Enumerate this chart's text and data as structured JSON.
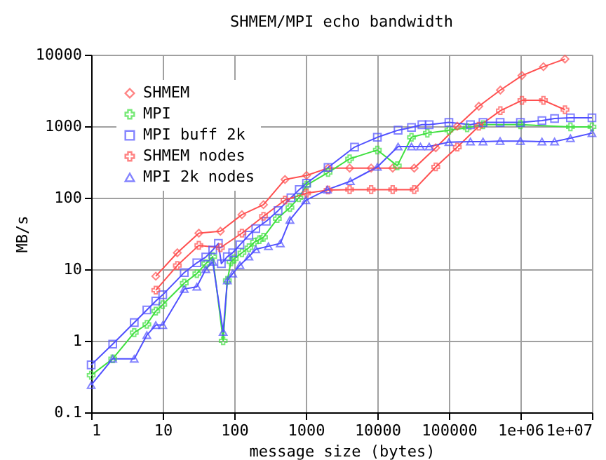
{
  "chart_data": {
    "type": "line",
    "title": "SHMEM/MPI echo bandwidth",
    "xlabel": "message size (bytes)",
    "ylabel": "MB/s",
    "log": "xy",
    "grid": true,
    "legend": "top left",
    "xlim": [
      1,
      10000000
    ],
    "ylim": [
      0.1,
      10000
    ],
    "xticks": [
      1,
      10,
      100,
      1000,
      10000,
      100000,
      {
        "value": 1000000,
        "label": "1e+06"
      },
      {
        "value": 10000000,
        "label": "1e+07"
      }
    ],
    "yticks": [
      0.1,
      1,
      10,
      100,
      1000,
      10000
    ],
    "series": [
      {
        "name": "SHMEM",
        "color": "#ff5050",
        "marker": "diamond",
        "x": [
          8,
          16,
          32,
          64,
          128,
          256,
          512,
          1024,
          2048,
          4096,
          8192,
          16384,
          32768,
          65536,
          131072,
          262144,
          524288,
          1048576,
          2097152,
          4194304
        ],
        "values": [
          8,
          17,
          32,
          34,
          58,
          80,
          180,
          205,
          260,
          260,
          260,
          260,
          260,
          500,
          1000,
          1900,
          3200,
          5100,
          6800,
          8700
        ]
      },
      {
        "name": "MPI",
        "color": "#40e040",
        "marker": "cross",
        "x": [
          1,
          2,
          4,
          6,
          8,
          10,
          20,
          30,
          40,
          50,
          70,
          80,
          90,
          100,
          128,
          160,
          192,
          224,
          256,
          400,
          600,
          800,
          1024,
          2048,
          4096,
          10000,
          19000,
          30000,
          50000,
          100000,
          180000,
          300000,
          1000000,
          5000000,
          10000000
        ],
        "values": [
          0.33,
          0.56,
          1.3,
          1.7,
          2.6,
          3.2,
          6.4,
          8.7,
          12,
          15,
          1.0,
          7,
          12.7,
          14,
          17,
          20,
          24,
          26,
          28,
          51,
          73,
          100,
          150,
          225,
          350,
          465,
          280,
          700,
          800,
          880,
          950,
          1050,
          1050,
          980,
          980
        ]
      },
      {
        "name": "MPI buff 2k",
        "color": "#5050ff",
        "marker": "square",
        "x": [
          1,
          2,
          4,
          6,
          8,
          10,
          20,
          30,
          40,
          50,
          60,
          66,
          80,
          95,
          120,
          160,
          200,
          280,
          410,
          620,
          810,
          1024,
          2048,
          4800,
          10000,
          19500,
          30000,
          42000,
          53000,
          100000,
          200000,
          300000,
          520000,
          1000000,
          2000000,
          3000000,
          5000000,
          10000000
        ],
        "values": [
          0.46,
          0.9,
          1.8,
          2.7,
          3.6,
          4.4,
          9,
          12.3,
          14.8,
          18.6,
          23,
          12,
          15,
          17,
          22,
          30,
          37,
          47,
          66,
          100,
          130,
          160,
          265,
          510,
          700,
          880,
          960,
          1050,
          1050,
          1130,
          1050,
          1130,
          1130,
          1130,
          1200,
          1280,
          1310,
          1310
        ]
      },
      {
        "name": "SHMEM nodes",
        "color": "#ff5050",
        "marker": "cross",
        "x": [
          8,
          16,
          32,
          64,
          128,
          256,
          512,
          1024,
          2048,
          4096,
          8192,
          16384,
          32768,
          65536,
          131072,
          262144,
          524288,
          1048576,
          2097152,
          4194304
        ],
        "values": [
          5.1,
          11.3,
          21.6,
          20,
          32,
          55,
          93,
          116,
          128,
          130,
          130,
          130,
          130,
          270,
          510,
          1000,
          1650,
          2300,
          2300,
          1700
        ]
      },
      {
        "name": "MPI 2k nodes",
        "color": "#5050ff",
        "marker": "triangle",
        "x": [
          1,
          2,
          4,
          6,
          8,
          10,
          20,
          30,
          40,
          50,
          65,
          70,
          80,
          95,
          120,
          160,
          200,
          300,
          440,
          600,
          1000,
          2000,
          4200,
          10000,
          19500,
          30000,
          40000,
          53000,
          100000,
          200000,
          300000,
          520000,
          1000000,
          2000000,
          3000000,
          5000000,
          10000000
        ],
        "values": [
          0.24,
          0.56,
          0.56,
          1.2,
          1.66,
          1.66,
          5.3,
          5.7,
          10,
          12.7,
          null,
          1.33,
          7,
          8.7,
          11.4,
          15,
          19,
          21,
          23,
          49,
          92,
          130,
          170,
          270,
          520,
          520,
          520,
          520,
          600,
          610,
          610,
          620,
          620,
          610,
          610,
          680,
          800
        ]
      }
    ]
  }
}
